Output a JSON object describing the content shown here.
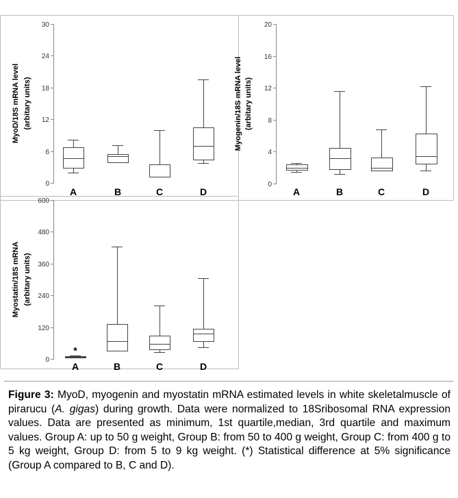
{
  "chart_data": [
    {
      "type": "box",
      "ylabel": [
        "MyoD/18S mRNA level",
        "(arbitary units)"
      ],
      "ylim": [
        0,
        30
      ],
      "yticks": [
        0,
        6,
        12,
        18,
        24,
        30
      ],
      "categories": [
        "A",
        "B",
        "C",
        "D"
      ],
      "boxes": [
        {
          "category": "A",
          "min": 2.0,
          "q1": 2.9,
          "median": 4.6,
          "q3": 6.7,
          "max": 8.1
        },
        {
          "category": "B",
          "min": 3.9,
          "q1": 3.9,
          "median": 5.0,
          "q3": 5.4,
          "max": 7.1
        },
        {
          "category": "C",
          "min": 1.1,
          "q1": 1.1,
          "median": 1.2,
          "q3": 3.5,
          "max": 10.0
        },
        {
          "category": "D",
          "min": 3.7,
          "q1": 4.4,
          "median": 7.0,
          "q3": 10.5,
          "max": 19.5
        }
      ],
      "grid": false
    },
    {
      "type": "box",
      "ylabel": [
        "Myogenin/18S mRNA level",
        "(arbitary units)"
      ],
      "ylim": [
        0,
        20
      ],
      "yticks": [
        0,
        4,
        8,
        12,
        16,
        20
      ],
      "categories": [
        "A",
        "B",
        "C",
        "D"
      ],
      "boxes": [
        {
          "category": "A",
          "min": 1.5,
          "q1": 1.7,
          "median": 2.0,
          "q3": 2.4,
          "max": 2.6
        },
        {
          "category": "B",
          "min": 1.2,
          "q1": 1.8,
          "median": 3.2,
          "q3": 4.5,
          "max": 11.6
        },
        {
          "category": "C",
          "min": 1.6,
          "q1": 1.6,
          "median": 2.0,
          "q3": 3.3,
          "max": 6.8
        },
        {
          "category": "D",
          "min": 1.6,
          "q1": 2.5,
          "median": 3.4,
          "q3": 6.3,
          "max": 12.2
        }
      ],
      "grid": false
    },
    {
      "type": "box",
      "ylabel": [
        "Myostatin/18S mRNA",
        "(arbitary units)"
      ],
      "ylim": [
        0,
        600
      ],
      "yticks": [
        0,
        120,
        240,
        360,
        480,
        600
      ],
      "categories": [
        "A",
        "B",
        "C",
        "D"
      ],
      "boxes": [
        {
          "category": "A",
          "min": 4,
          "q1": 6,
          "median": 8,
          "q3": 11,
          "max": 12
        },
        {
          "category": "B",
          "min": 30,
          "q1": 32,
          "median": 68,
          "q3": 133,
          "max": 425
        },
        {
          "category": "C",
          "min": 25,
          "q1": 35,
          "median": 57,
          "q3": 88,
          "max": 203
        },
        {
          "category": "D",
          "min": 45,
          "q1": 68,
          "median": 95,
          "q3": 115,
          "max": 305
        }
      ],
      "annotations": [
        {
          "category": "A",
          "text": "*"
        }
      ],
      "grid": false
    }
  ],
  "caption": {
    "label": "Figure 3:",
    "text_1": " MyoD, myogenin and myostatin mRNA estimated levels in white skeletalmuscle of pirarucu (",
    "species": "A. gigas",
    "text_2": ") during growth. Data were normalized to 18Sribosomal RNA expression values. Data are presented as minimum, 1st quartile,median, 3rd quartile and maximum values. Group A: up to 50 g weight, Group B: from 50 to 400 g weight, Group C: from 400 g to 5 kg weight, Group D: from 5 to 9 kg weight. (*) Statistical difference at 5% significance (Group A compared to B, C and D)."
  }
}
